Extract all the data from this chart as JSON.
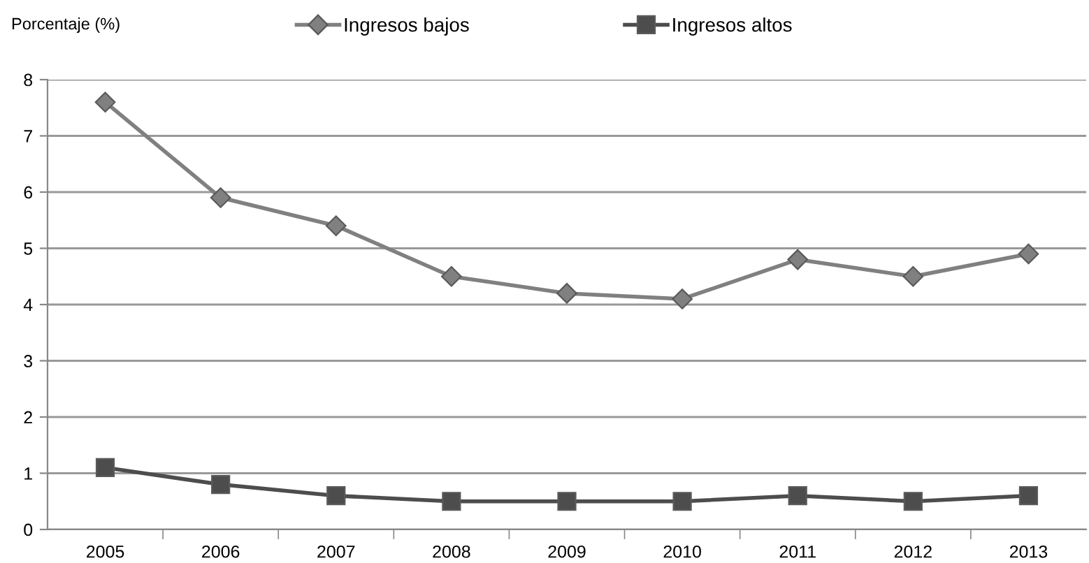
{
  "chart_data": {
    "type": "line",
    "ylabel": "Porcentaje (%)",
    "categories": [
      "2005",
      "2006",
      "2007",
      "2008",
      "2009",
      "2010",
      "2011",
      "2012",
      "2013"
    ],
    "series": [
      {
        "name": "Ingresos bajos",
        "color": "#808080",
        "marker": "diamond",
        "values": [
          7.6,
          5.9,
          5.4,
          4.5,
          4.2,
          4.1,
          4.8,
          4.5,
          4.9
        ]
      },
      {
        "name": "Ingresos altos",
        "color": "#4d4d4d",
        "marker": "square",
        "values": [
          1.1,
          0.8,
          0.6,
          0.5,
          0.5,
          0.5,
          0.6,
          0.5,
          0.6
        ]
      }
    ],
    "ylim": [
      0,
      8
    ],
    "yticks": [
      0,
      1,
      2,
      3,
      4,
      5,
      6,
      7,
      8
    ],
    "grid": "y",
    "legend": "top",
    "line_style": "solid"
  }
}
